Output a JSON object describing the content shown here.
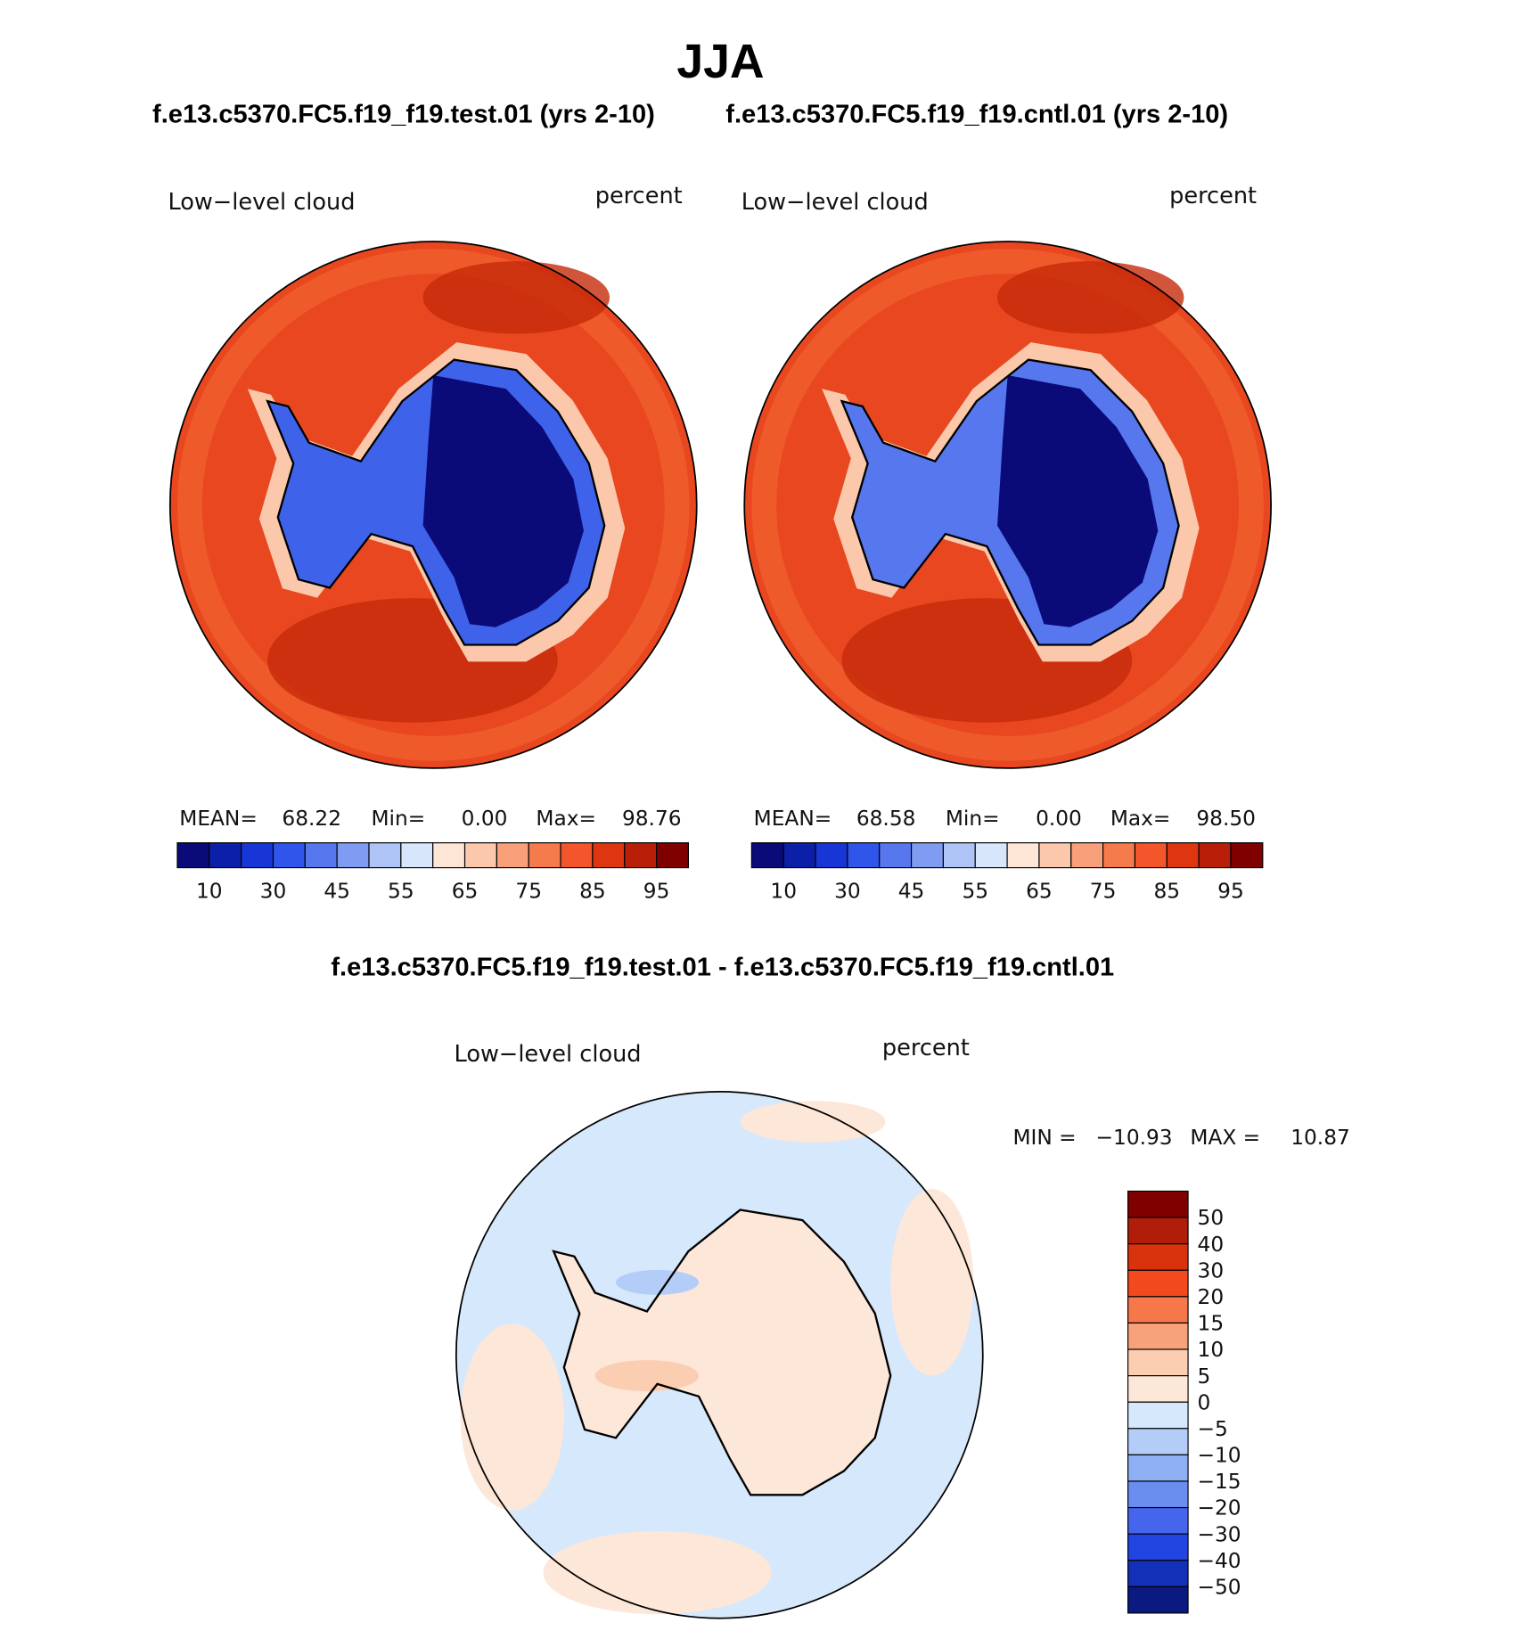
{
  "title": "JJA",
  "panels": [
    {
      "subtitle": "f.e13.c5370.FC5.f19_f19.test.01 (yrs 2-10)",
      "variable": "Low−level cloud",
      "units": "percent",
      "stats": [
        "MEAN=",
        "68.22",
        "Min=",
        "0.00",
        "Max=",
        "98.76"
      ]
    },
    {
      "subtitle": "f.e13.c5370.FC5.f19_f19.cntl.01 (yrs 2-10)",
      "variable": "Low−level cloud",
      "units": "percent",
      "stats": [
        "MEAN=",
        "68.58",
        "Min=",
        "0.00",
        "Max=",
        "98.50"
      ]
    }
  ],
  "colorbar": {
    "colors": [
      "#0a0a78",
      "#0c1fa8",
      "#1836d6",
      "#2f55ea",
      "#5677ee",
      "#7f9cf2",
      "#aec4f7",
      "#d8e6fb",
      "#fde6d6",
      "#fbc8ac",
      "#f8a07a",
      "#f57a4c",
      "#f2562a",
      "#dd3610",
      "#b81e08",
      "#800000"
    ],
    "labels": [
      "10",
      "30",
      "45",
      "55",
      "65",
      "75",
      "85",
      "95"
    ]
  },
  "difference": {
    "title": "f.e13.c5370.FC5.f19_f19.test.01 - f.e13.c5370.FC5.f19_f19.cntl.01",
    "variable": "Low−level cloud",
    "units": "percent",
    "stats": [
      "MIN =",
      "−10.93",
      "MAX =",
      "10.87"
    ],
    "colorbar": {
      "colors": [
        "#800000",
        "#b01e0a",
        "#d9330d",
        "#f24a1e",
        "#f6774a",
        "#f8a27c",
        "#fbcdb1",
        "#fde7d8",
        "#d6e8fb",
        "#b3cdf8",
        "#8fb0f5",
        "#6a8ef0",
        "#4566ec",
        "#2244e0",
        "#1230b8",
        "#0a1a80"
      ],
      "labels": [
        "50",
        "40",
        "30",
        "20",
        "15",
        "10",
        "5",
        "0",
        "−5",
        "−10",
        "−15",
        "−20",
        "−30",
        "−40",
        "−50"
      ]
    }
  }
}
